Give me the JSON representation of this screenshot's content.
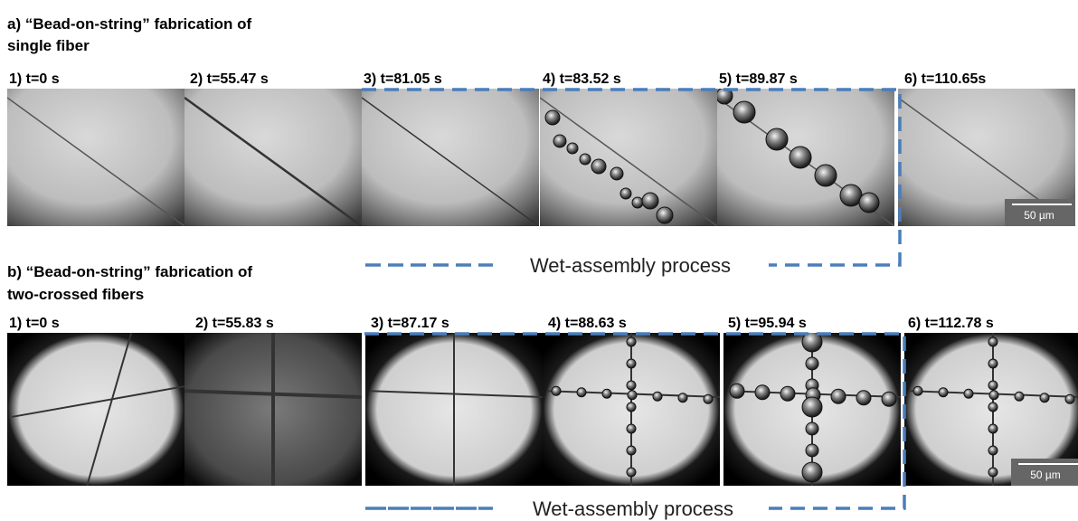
{
  "panel_a": {
    "title_line1": "a) “Bead-on-string” fabrication of",
    "title_line2": "single fiber",
    "frames": [
      "1) t=0 s",
      "2) t=55.47 s",
      "3) t=81.05 s",
      "4) t=83.52 s",
      "5) t=89.87 s",
      "6) t=110.65s"
    ],
    "scale_bar": "50 µm",
    "process_label": "Wet-assembly process"
  },
  "panel_b": {
    "title_line1": "b) “Bead-on-string” fabrication of",
    "title_line2": "two-crossed fibers",
    "frames": [
      "1) t=0 s",
      "2) t=55.83 s",
      "3) t=87.17 s",
      "4) t=88.63 s",
      "5) t=95.94 s",
      "6) t=112.78 s"
    ],
    "scale_bar": "50 µm",
    "process_label": "Wet-assembly process"
  }
}
